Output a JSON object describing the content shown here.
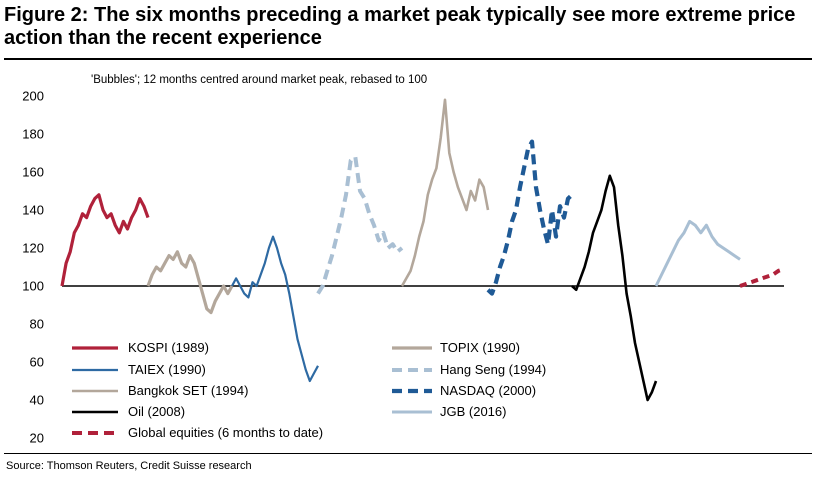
{
  "figure": {
    "title": "Figure 2: The six months preceding a market peak typically see more extreme price action than the recent experience",
    "source": "Source: Thomson Reuters, Credit Suisse research"
  },
  "chart_data": {
    "type": "line",
    "title": "Figure 2: The six months preceding a market peak typically see more extreme price action than the recent experience",
    "subtitle": "'Bubbles'; 12 months centred around market peak, rebased to 100",
    "ylim": [
      20,
      200
    ],
    "yticks": [
      200,
      180,
      160,
      140,
      120,
      100,
      80,
      60,
      40,
      20
    ],
    "baseline": 100,
    "grid": false,
    "legend_position": "bottom-inside",
    "series": [
      {
        "name": "KOSPI (1989)",
        "color": "#b0213a",
        "style": "solid",
        "y": [
          100,
          112,
          118,
          128,
          132,
          138,
          136,
          142,
          146,
          148,
          140,
          136,
          138,
          132,
          128,
          134,
          130,
          136,
          140,
          146,
          142,
          136
        ]
      },
      {
        "name": "TOPIX (1990)",
        "color": "#b3a79b",
        "style": "solid",
        "y": [
          100,
          106,
          110,
          108,
          112,
          116,
          114,
          118,
          112,
          110,
          116,
          112,
          104,
          96,
          88,
          86,
          92,
          96,
          100,
          96,
          100
        ]
      },
      {
        "name": "TAIEX (1990)",
        "color": "#2e6aa3",
        "style": "solid",
        "y": [
          100,
          104,
          100,
          96,
          94,
          102,
          100,
          106,
          112,
          120,
          126,
          120,
          112,
          106,
          96,
          84,
          72,
          64,
          56,
          50,
          54,
          58
        ]
      },
      {
        "name": "Hang Seng (1994)",
        "color": "#a9bfd3",
        "style": "dashed",
        "y": [
          96,
          100,
          108,
          116,
          126,
          136,
          148,
          166,
          168,
          150,
          146,
          138,
          132,
          124,
          128,
          120,
          122,
          118,
          120
        ]
      },
      {
        "name": "Bangkok SET (1994)",
        "color": "#b3a79b",
        "style": "solid",
        "y": [
          100,
          104,
          108,
          116,
          126,
          134,
          148,
          156,
          162,
          178,
          198,
          170,
          160,
          152,
          146,
          140,
          150,
          145,
          156,
          152,
          140
        ]
      },
      {
        "name": "NASDAQ (2000)",
        "color": "#1f5a96",
        "style": "dashed",
        "y": [
          98,
          96,
          102,
          110,
          116,
          124,
          134,
          140,
          152,
          162,
          172,
          176,
          152,
          140,
          130,
          122,
          140,
          126,
          142,
          136,
          146,
          148
        ]
      },
      {
        "name": "Oil (2008)",
        "color": "#000000",
        "style": "solid",
        "y": [
          100,
          98,
          104,
          110,
          118,
          128,
          134,
          140,
          150,
          158,
          152,
          132,
          116,
          96,
          84,
          70,
          60,
          50,
          40,
          44,
          50
        ]
      },
      {
        "name": "JGB (2016)",
        "color": "#a9bfd3",
        "style": "solid",
        "y": [
          100,
          106,
          112,
          118,
          124,
          128,
          134,
          132,
          128,
          132,
          126,
          122,
          120,
          118,
          116,
          114
        ]
      },
      {
        "name": "Global equities (6 months to date)",
        "color": "#b0213a",
        "style": "dashed",
        "y": [
          100,
          101,
          102,
          103,
          104,
          105,
          106,
          108,
          109
        ]
      }
    ]
  }
}
